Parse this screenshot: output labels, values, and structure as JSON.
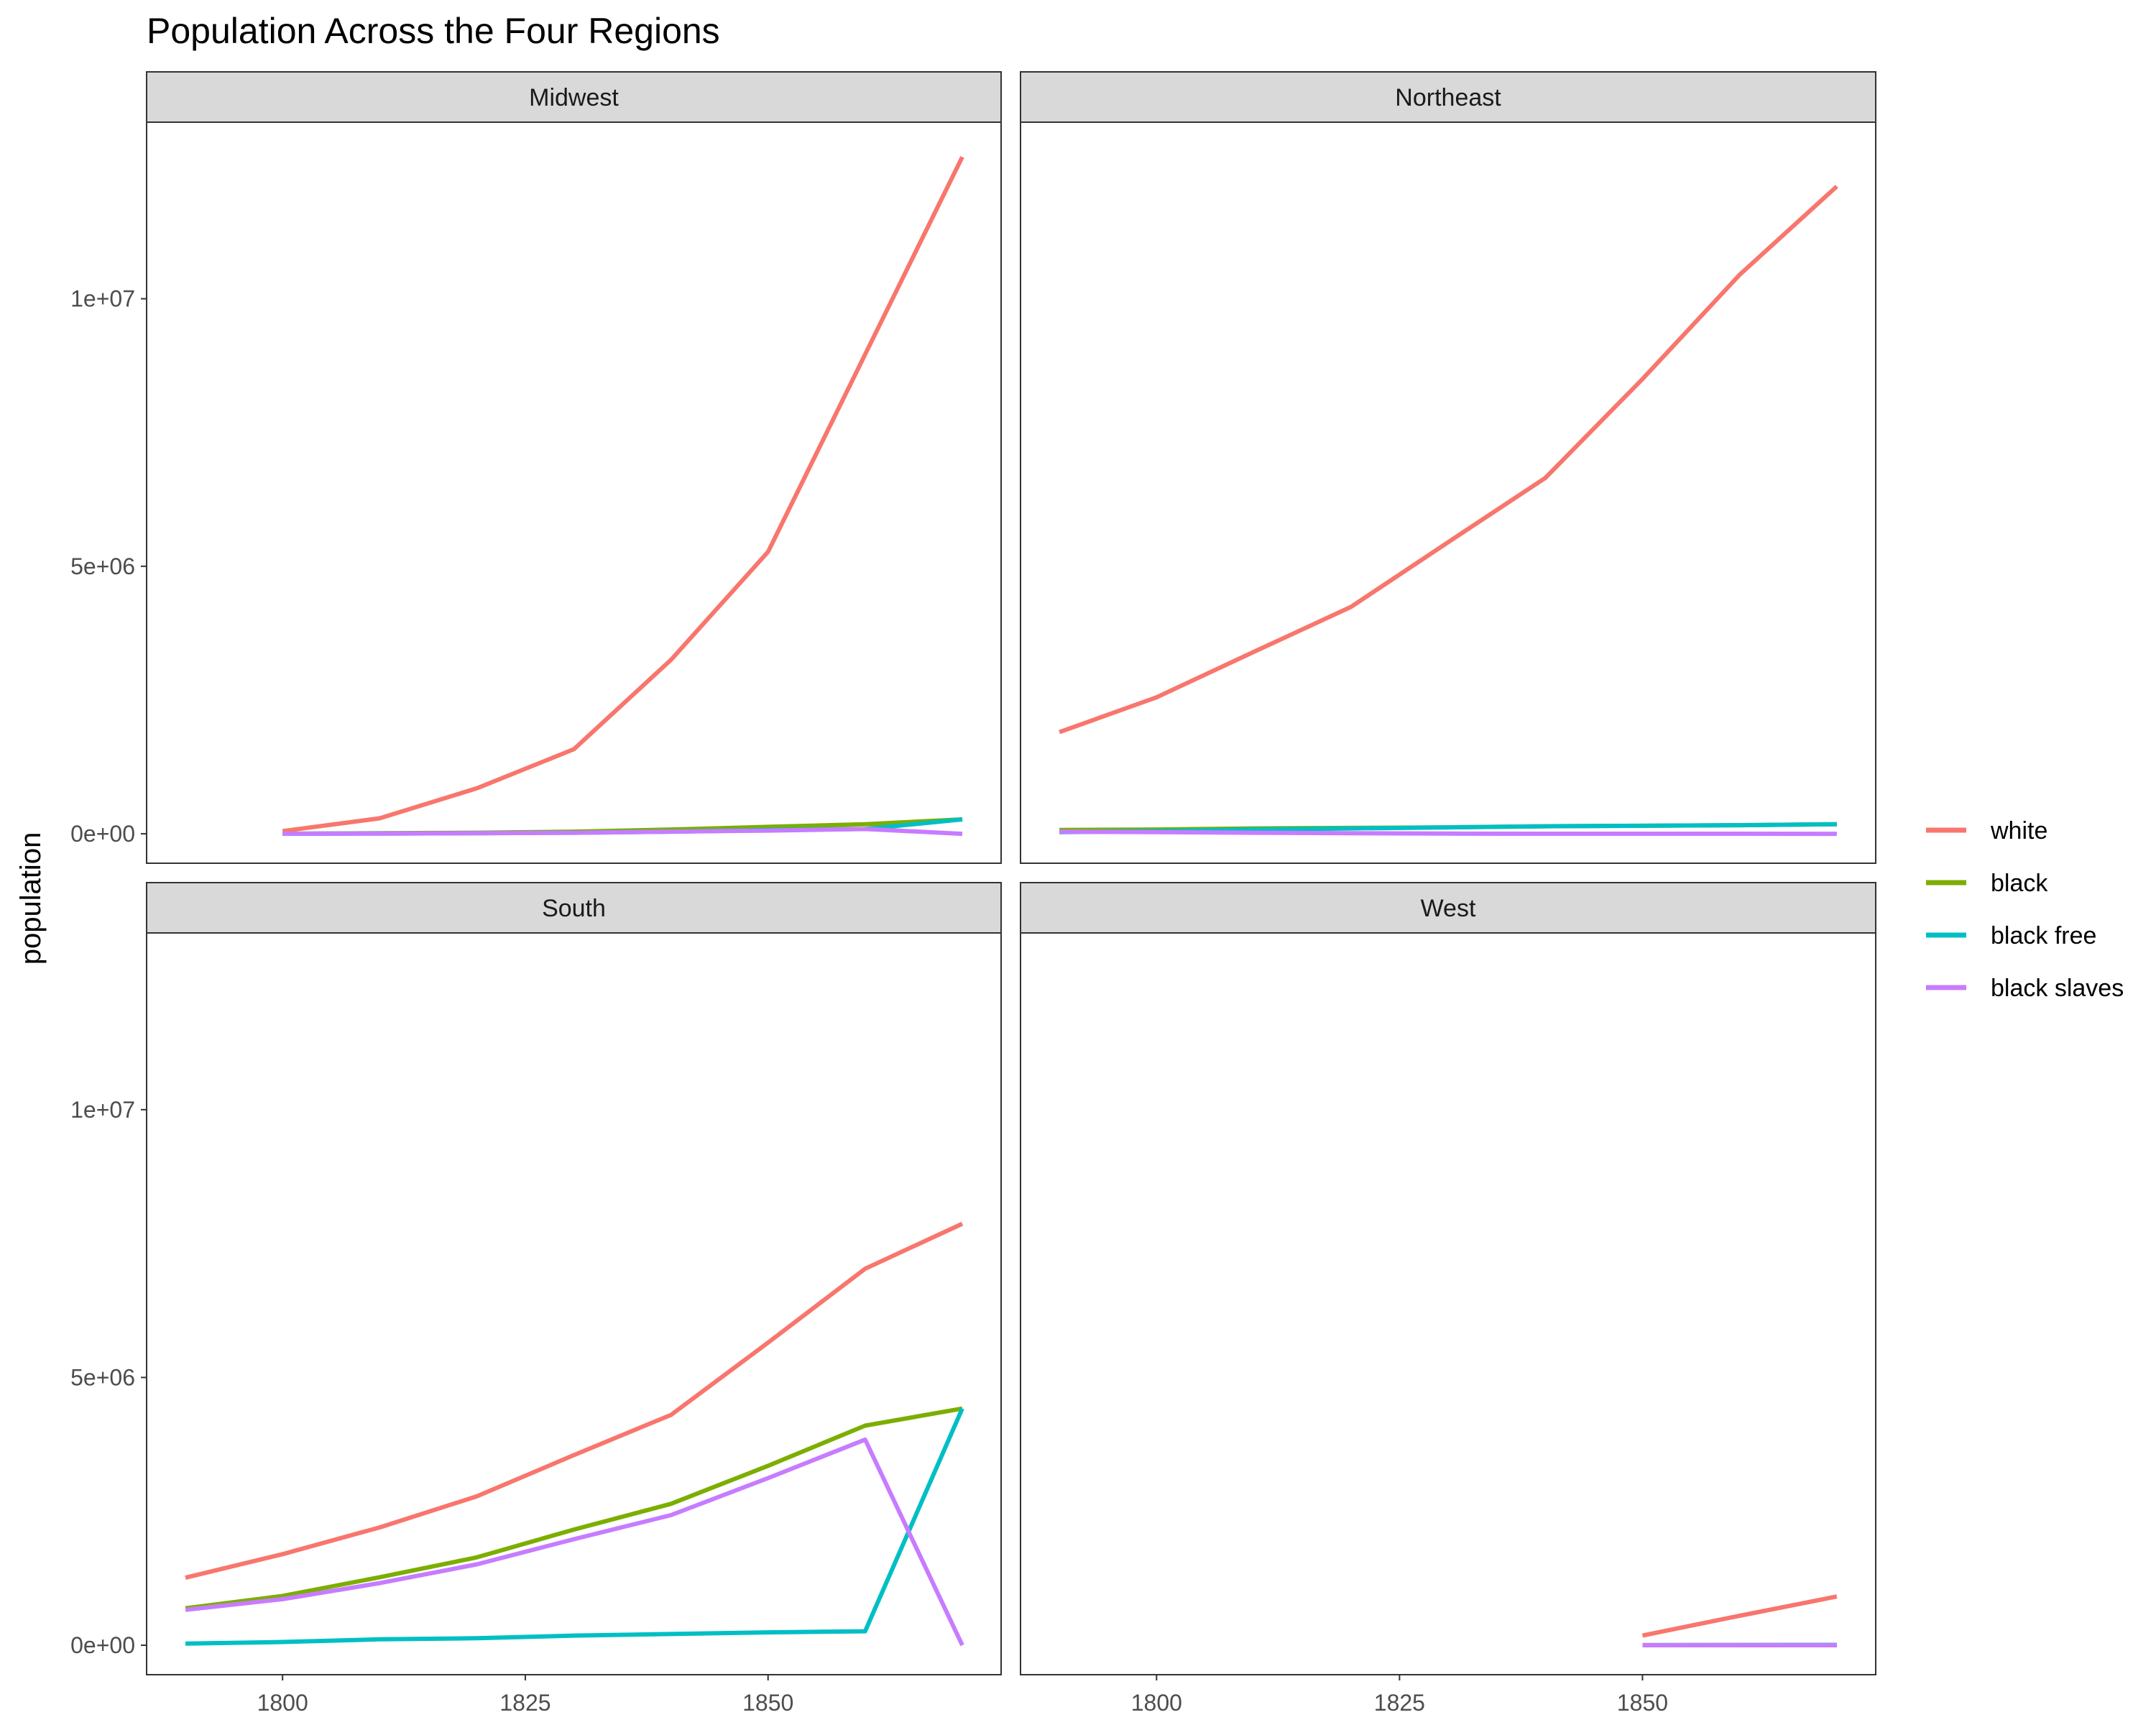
{
  "chart_data": {
    "type": "line",
    "title": "Population Across the Four Regions",
    "xlabel": "",
    "ylabel": "population",
    "facet_layout": "2x2",
    "xlim": [
      1786,
      1874
    ],
    "ylim": [
      -550000,
      13300000
    ],
    "x_ticks": [
      {
        "value": 1800,
        "label": "1800"
      },
      {
        "value": 1825,
        "label": "1825"
      },
      {
        "value": 1850,
        "label": "1850"
      }
    ],
    "y_ticks": [
      {
        "value": 0,
        "label": "0e+00"
      },
      {
        "value": 5000000,
        "label": "5e+06"
      },
      {
        "value": 10000000,
        "label": "1e+07"
      }
    ],
    "grid": false,
    "legend": {
      "position": "right",
      "entries": [
        {
          "key": "white",
          "label": "white",
          "color": "#F8766D"
        },
        {
          "key": "black",
          "label": "black",
          "color": "#7CAE00"
        },
        {
          "key": "black_free",
          "label": "black free",
          "color": "#00BFC4"
        },
        {
          "key": "black_slaves",
          "label": "black slaves",
          "color": "#C77CFF"
        }
      ]
    },
    "facets": [
      {
        "name": "Midwest",
        "series": [
          {
            "key": "white",
            "x": [
              1800,
              1810,
              1820,
              1830,
              1840,
              1850,
              1860,
              1870
            ],
            "y": [
              50000,
              290000,
              850000,
              1580000,
              3250000,
              5270000,
              8960000,
              12650000
            ]
          },
          {
            "key": "black",
            "x": [
              1800,
              1810,
              1820,
              1830,
              1840,
              1850,
              1860,
              1870
            ],
            "y": [
              1000,
              10000,
              20000,
              40000,
              80000,
              130000,
              180000,
              270000
            ]
          },
          {
            "key": "black_free",
            "x": [
              1800,
              1810,
              1820,
              1830,
              1840,
              1850,
              1860,
              1870
            ],
            "y": [
              500,
              5000,
              10000,
              20000,
              40000,
              70000,
              90000,
              270000
            ]
          },
          {
            "key": "black_slaves",
            "x": [
              1800,
              1810,
              1820,
              1830,
              1840,
              1850,
              1860,
              1870
            ],
            "y": [
              500,
              5000,
              10000,
              20000,
              40000,
              60000,
              90000,
              0
            ]
          }
        ]
      },
      {
        "name": "Northeast",
        "series": [
          {
            "key": "white",
            "x": [
              1790,
              1800,
              1810,
              1820,
              1830,
              1840,
              1850,
              1860,
              1870
            ],
            "y": [
              1900000,
              2550000,
              3400000,
              4240000,
              5450000,
              6650000,
              8500000,
              10450000,
              12100000
            ]
          },
          {
            "key": "black",
            "x": [
              1790,
              1800,
              1810,
              1820,
              1830,
              1840,
              1850,
              1860,
              1870
            ],
            "y": [
              70000,
              80000,
              100000,
              110000,
              120000,
              140000,
              150000,
              160000,
              180000
            ]
          },
          {
            "key": "black_free",
            "x": [
              1790,
              1800,
              1810,
              1820,
              1830,
              1840,
              1850,
              1860,
              1870
            ],
            "y": [
              30000,
              50000,
              80000,
              100000,
              120000,
              140000,
              150000,
              160000,
              180000
            ]
          },
          {
            "key": "black_slaves",
            "x": [
              1790,
              1800,
              1810,
              1820,
              1830,
              1840,
              1850,
              1860,
              1870
            ],
            "y": [
              40000,
              30000,
              20000,
              10000,
              3000,
              1000,
              300,
              200,
              0
            ]
          }
        ]
      },
      {
        "name": "South",
        "series": [
          {
            "key": "white",
            "x": [
              1790,
              1800,
              1810,
              1820,
              1830,
              1840,
              1850,
              1860,
              1870
            ],
            "y": [
              1260000,
              1700000,
              2200000,
              2780000,
              3550000,
              4300000,
              5650000,
              7030000,
              7870000
            ]
          },
          {
            "key": "black",
            "x": [
              1790,
              1800,
              1810,
              1820,
              1830,
              1840,
              1850,
              1860,
              1870
            ],
            "y": [
              690000,
              920000,
              1270000,
              1640000,
              2160000,
              2640000,
              3350000,
              4100000,
              4420000
            ]
          },
          {
            "key": "black_free",
            "x": [
              1790,
              1800,
              1810,
              1820,
              1830,
              1840,
              1850,
              1860,
              1870
            ],
            "y": [
              30000,
              60000,
              110000,
              130000,
              180000,
              210000,
              240000,
              260000,
              4420000
            ]
          },
          {
            "key": "black_slaves",
            "x": [
              1790,
              1800,
              1810,
              1820,
              1830,
              1840,
              1850,
              1860,
              1870
            ],
            "y": [
              660000,
              860000,
              1160000,
              1510000,
              1980000,
              2430000,
              3120000,
              3840000,
              0
            ]
          }
        ]
      },
      {
        "name": "West",
        "series": [
          {
            "key": "white",
            "x": [
              1850,
              1860,
              1870
            ],
            "y": [
              180000,
              550000,
              910000
            ]
          },
          {
            "key": "black",
            "x": [
              1850,
              1860,
              1870
            ],
            "y": [
              1000,
              4000,
              5000
            ]
          },
          {
            "key": "black_free",
            "x": [
              1850,
              1860,
              1870
            ],
            "y": [
              1000,
              4000,
              5000
            ]
          },
          {
            "key": "black_slaves",
            "x": [
              1850,
              1860,
              1870
            ],
            "y": [
              0,
              0,
              0
            ]
          }
        ]
      }
    ]
  }
}
